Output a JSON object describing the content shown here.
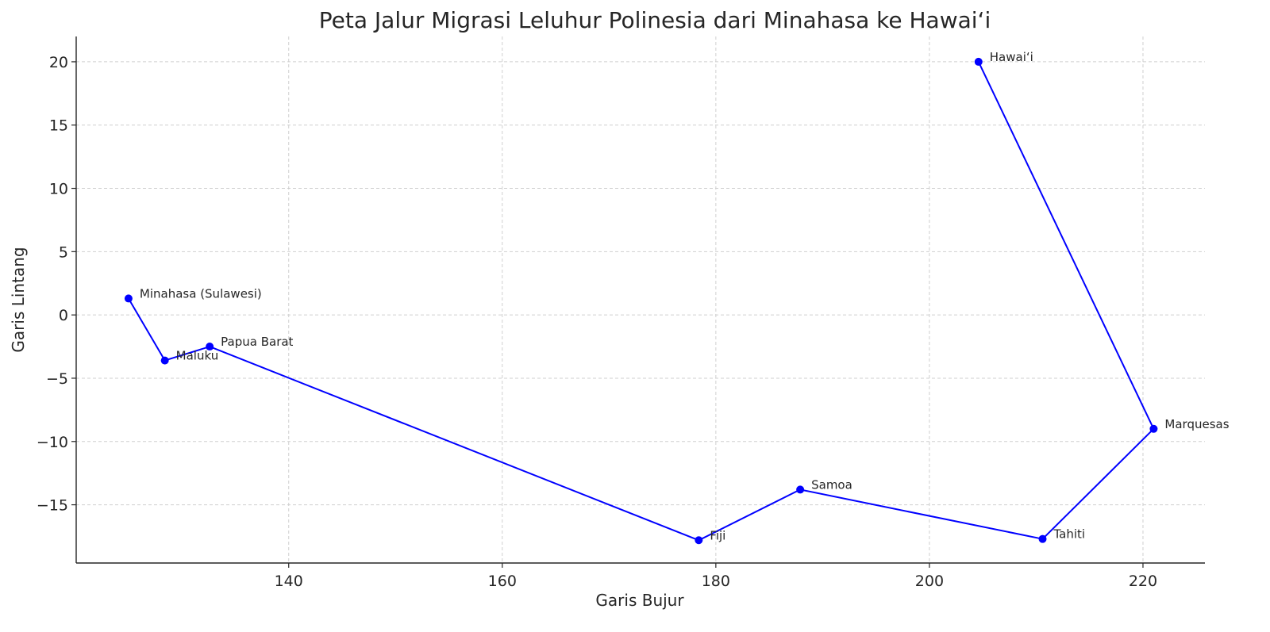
{
  "chart_data": {
    "type": "line",
    "title": "Peta Jalur Migrasi Leluhur Polinesia dari Minahasa ke Hawai‘i",
    "xlabel": "Garis Bujur",
    "ylabel": "Garis Lintang",
    "xlim": [
      120.1,
      225.8
    ],
    "ylim": [
      -19.6,
      22.0
    ],
    "xticks": [
      140,
      160,
      180,
      200,
      220
    ],
    "xtick_labels": [
      "140",
      "160",
      "180",
      "200",
      "220"
    ],
    "yticks": [
      20,
      15,
      10,
      5,
      0,
      -5,
      -10,
      -15
    ],
    "ytick_labels": [
      "20",
      "15",
      "10",
      "5",
      "0",
      "−5",
      "−10",
      "−15"
    ],
    "grid": true,
    "line_color": "#0000ff",
    "series": [
      {
        "points": [
          {
            "label": "Minahasa (Sulawesi)",
            "x": 125.0,
            "y": 1.3
          },
          {
            "label": "Maluku",
            "x": 128.4,
            "y": -3.6
          },
          {
            "label": "Papua Barat",
            "x": 132.6,
            "y": -2.5
          },
          {
            "label": "Fiji",
            "x": 178.4,
            "y": -17.8
          },
          {
            "label": "Samoa",
            "x": 187.9,
            "y": -13.8
          },
          {
            "label": "Tahiti",
            "x": 210.6,
            "y": -17.7
          },
          {
            "label": "Marquesas",
            "x": 221.0,
            "y": -9.0
          },
          {
            "label": "Hawai‘i",
            "x": 204.6,
            "y": 20.0
          }
        ]
      }
    ]
  }
}
